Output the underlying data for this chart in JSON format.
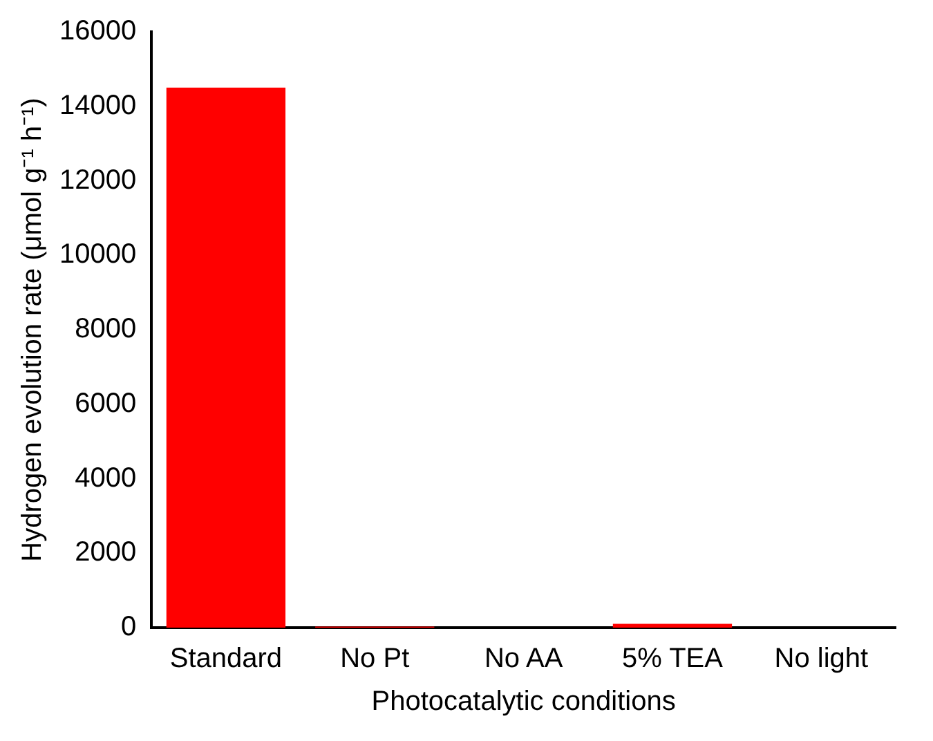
{
  "chart_data": {
    "type": "bar",
    "xlabel": "Photocatalytic conditions",
    "ylabel": "Hydrogen evolution rate (μmol g⁻¹ h⁻¹)",
    "categories": [
      "Standard",
      "No Pt",
      "No AA",
      "5% TEA",
      "No light"
    ],
    "values": [
      14500,
      30,
      0,
      100,
      0
    ],
    "color": "#ff0000",
    "ylim": [
      0,
      16000
    ],
    "yticks": [
      0,
      2000,
      4000,
      6000,
      8000,
      10000,
      12000,
      14000,
      16000
    ],
    "grid": false,
    "legend": false
  }
}
